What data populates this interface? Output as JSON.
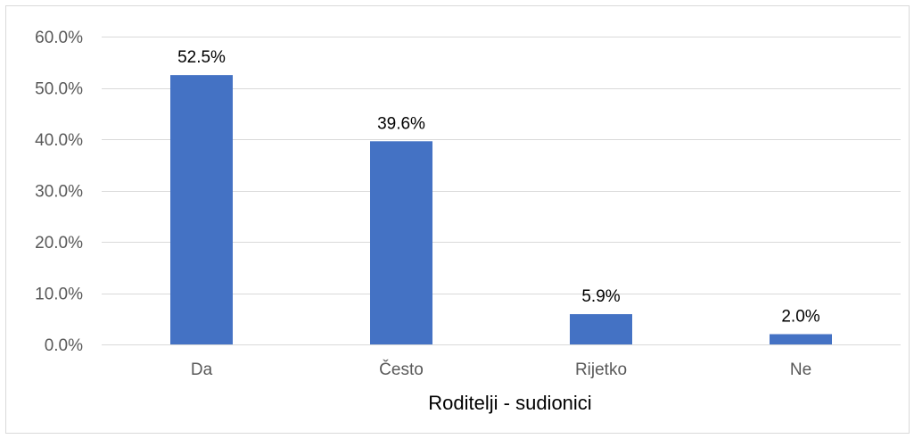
{
  "chart_data": {
    "type": "bar",
    "categories": [
      "Da",
      "Često",
      "Rijetko",
      "Ne"
    ],
    "values": [
      52.5,
      39.6,
      5.9,
      2.0
    ],
    "data_labels": [
      "52.5%",
      "39.6%",
      "5.9%",
      "2.0%"
    ],
    "title": "",
    "xlabel": "Roditelji - sudionici",
    "ylabel": "",
    "ylim": [
      0,
      60
    ],
    "yticks": [
      0,
      10,
      20,
      30,
      40,
      50,
      60
    ],
    "ytick_labels": [
      "0.0%",
      "10.0%",
      "20.0%",
      "30.0%",
      "40.0%",
      "50.0%",
      "60.0%"
    ],
    "grid": true,
    "legend": "none",
    "colors": {
      "bar": "#4472C4",
      "grid": "#d9d9d9",
      "axis_text": "#595959",
      "label_text": "#000000"
    }
  }
}
